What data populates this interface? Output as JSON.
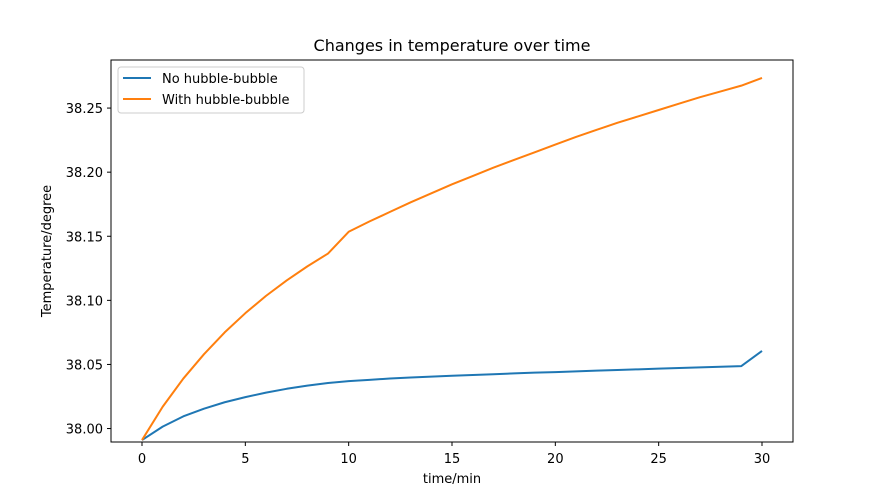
{
  "chart_data": {
    "type": "line",
    "title": "Changes in temperature over time",
    "xlabel": "time/min",
    "ylabel": "Temperature/degree",
    "xlim": [
      -1.5,
      31.5
    ],
    "ylim": [
      37.9895,
      38.2875
    ],
    "x_ticks": [
      0,
      5,
      10,
      15,
      20,
      25,
      30
    ],
    "x_tick_labels": [
      "0",
      "5",
      "10",
      "15",
      "20",
      "25",
      "30"
    ],
    "y_ticks": [
      38.0,
      38.05,
      38.1,
      38.15,
      38.2,
      38.25
    ],
    "y_tick_labels": [
      "38.00",
      "38.05",
      "38.10",
      "38.15",
      "38.20",
      "38.25"
    ],
    "grid": false,
    "legend_position": "top-left",
    "x": [
      0,
      1,
      2,
      3,
      4,
      5,
      6,
      7,
      8,
      9,
      10,
      11,
      12,
      13,
      14,
      15,
      16,
      17,
      18,
      19,
      20,
      21,
      22,
      23,
      24,
      25,
      26,
      27,
      28,
      29,
      30
    ],
    "series": [
      {
        "name": "No hubble-bubble",
        "color": "#1f77b4",
        "values": [
          37.991,
          38.0015,
          38.0095,
          38.0155,
          38.0205,
          38.0245,
          38.028,
          38.031,
          38.0335,
          38.0355,
          38.037,
          38.038,
          38.039,
          38.0398,
          38.0405,
          38.0412,
          38.0418,
          38.0424,
          38.043,
          38.0436,
          38.044,
          38.0446,
          38.0452,
          38.0457,
          38.0462,
          38.0467,
          38.0472,
          38.0477,
          38.0482,
          38.0487,
          38.0605
        ]
      },
      {
        "name": "With hubble-bubble",
        "color": "#ff7f0e",
        "values": [
          37.991,
          38.017,
          38.039,
          38.058,
          38.075,
          38.09,
          38.1035,
          38.1155,
          38.1265,
          38.1365,
          38.1535,
          38.1615,
          38.169,
          38.1765,
          38.1835,
          38.1905,
          38.197,
          38.2035,
          38.2095,
          38.2155,
          38.2215,
          38.2275,
          38.233,
          38.2385,
          38.2435,
          38.2485,
          38.2535,
          38.2585,
          38.263,
          38.2675,
          38.2735
        ]
      }
    ]
  }
}
